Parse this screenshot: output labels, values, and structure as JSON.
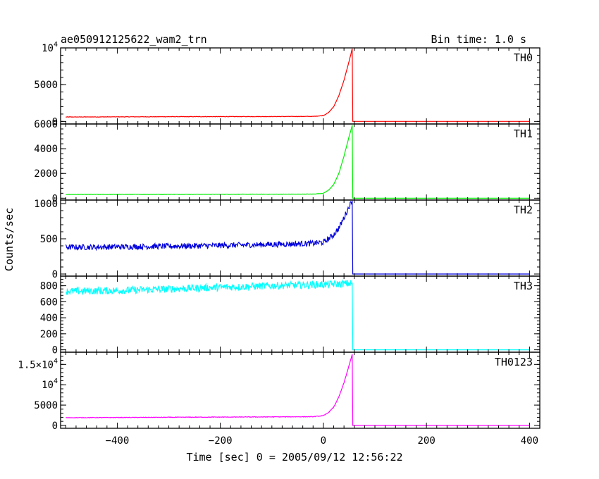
{
  "header": {
    "left_title": "ae050912125622_wam2_trn",
    "right_title": "Bin time: 1.0 s"
  },
  "chart_data": {
    "type": "line",
    "xlabel": "Time [sec] 0 = 2005/09/12 12:56:22",
    "ylabel": "Counts/sec",
    "xlim": [
      -510,
      420
    ],
    "x_ticks": [
      -400,
      -200,
      0,
      200,
      400
    ],
    "x_tick_labels": [
      "−400",
      "−200",
      "0",
      "200",
      "400"
    ],
    "grid": false,
    "panels": [
      {
        "name": "TH0",
        "color": "#ff0000",
        "ylim": [
          -350,
          10000
        ],
        "y_ticks": [
          0,
          5000,
          10000
        ],
        "y_tick_labels": [
          {
            "value": 0,
            "base": "0",
            "exp": ""
          },
          {
            "value": 5000,
            "base": "5000",
            "exp": ""
          },
          {
            "value": 10000,
            "base": "10",
            "exp": "4"
          }
        ],
        "series": {
          "x": [
            -500,
            -400,
            -300,
            -200,
            -100,
            -20,
            0,
            10,
            20,
            30,
            40,
            50,
            56,
            57,
            60,
            100,
            200,
            300,
            400
          ],
          "y": [
            600,
            620,
            640,
            650,
            660,
            680,
            800,
            1200,
            2000,
            3500,
            5600,
            8200,
            9900,
            0,
            0,
            0,
            0,
            0,
            0
          ],
          "noise": 30
        }
      },
      {
        "name": "TH1",
        "color": "#00ee00",
        "ylim": [
          -150,
          6000
        ],
        "y_ticks": [
          0,
          2000,
          4000,
          6000
        ],
        "y_tick_labels": [
          {
            "value": 0,
            "base": "0",
            "exp": ""
          },
          {
            "value": 2000,
            "base": "2000",
            "exp": ""
          },
          {
            "value": 4000,
            "base": "4000",
            "exp": ""
          },
          {
            "value": 6000,
            "base": "6000",
            "exp": ""
          }
        ],
        "series": {
          "x": [
            -500,
            -400,
            -300,
            -200,
            -100,
            -20,
            0,
            10,
            20,
            30,
            40,
            50,
            56,
            57,
            60,
            100,
            200,
            300,
            400
          ],
          "y": [
            300,
            305,
            310,
            315,
            320,
            330,
            400,
            650,
            1100,
            2000,
            3400,
            5000,
            5900,
            0,
            0,
            0,
            0,
            0,
            0
          ],
          "noise": 15
        }
      },
      {
        "name": "TH2",
        "color": "#0000dd",
        "ylim": [
          -30,
          1050
        ],
        "y_ticks": [
          0,
          500,
          1000
        ],
        "y_tick_labels": [
          {
            "value": 0,
            "base": "0",
            "exp": ""
          },
          {
            "value": 500,
            "base": "500",
            "exp": ""
          },
          {
            "value": 1000,
            "base": "1000",
            "exp": ""
          }
        ],
        "series": {
          "x": [
            -500,
            -400,
            -300,
            -200,
            -100,
            -20,
            0,
            10,
            20,
            30,
            40,
            50,
            56,
            57,
            60,
            100,
            200,
            300,
            400
          ],
          "y": [
            380,
            385,
            395,
            405,
            420,
            435,
            450,
            500,
            560,
            650,
            800,
            960,
            1040,
            0,
            0,
            0,
            0,
            0,
            0
          ],
          "noise": 40
        }
      },
      {
        "name": "TH3",
        "color": "#00ffff",
        "ylim": [
          -30,
          920
        ],
        "y_ticks": [
          0,
          200,
          400,
          600,
          800
        ],
        "y_tick_labels": [
          {
            "value": 0,
            "base": "0",
            "exp": ""
          },
          {
            "value": 200,
            "base": "200",
            "exp": ""
          },
          {
            "value": 400,
            "base": "400",
            "exp": ""
          },
          {
            "value": 600,
            "base": "600",
            "exp": ""
          },
          {
            "value": 800,
            "base": "800",
            "exp": ""
          }
        ],
        "series": {
          "x": [
            -500,
            -400,
            -300,
            -200,
            -100,
            0,
            20,
            40,
            56,
            57,
            60,
            100,
            200,
            300,
            400
          ],
          "y": [
            730,
            740,
            760,
            780,
            800,
            815,
            820,
            825,
            830,
            0,
            0,
            0,
            0,
            0,
            0
          ],
          "noise": 45
        }
      },
      {
        "name": "TH0123",
        "color": "#ff00ff",
        "ylim": [
          -700,
          18000
        ],
        "y_ticks": [
          0,
          5000,
          10000,
          15000
        ],
        "y_tick_labels": [
          {
            "value": 0,
            "base": "0",
            "exp": ""
          },
          {
            "value": 5000,
            "base": "5000",
            "exp": ""
          },
          {
            "value": 10000,
            "base": "10",
            "exp": "4"
          },
          {
            "value": 15000,
            "base": "1.5×10",
            "exp": "4"
          }
        ],
        "series": {
          "x": [
            -500,
            -400,
            -300,
            -200,
            -100,
            -20,
            0,
            10,
            20,
            30,
            40,
            50,
            56,
            57,
            60,
            100,
            200,
            300,
            400
          ],
          "y": [
            1900,
            1950,
            2000,
            2050,
            2100,
            2150,
            2400,
            3200,
            4500,
            7000,
            10500,
            14800,
            17500,
            0,
            0,
            0,
            0,
            0,
            0
          ],
          "noise": 70
        }
      }
    ]
  }
}
